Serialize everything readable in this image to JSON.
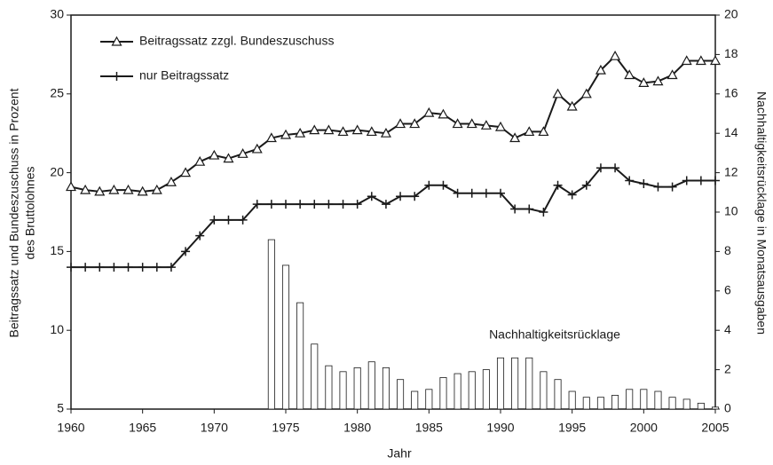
{
  "chart_data": {
    "type": "combo",
    "xlabel": "Jahr",
    "ylabel": [
      "Beitragssatz und Bundeszuschuss in Prozent",
      "des Bruttolohnes"
    ],
    "y2label": "Nachhaltigkeitsrücklage in Monatsausgaben",
    "annotation": "Nachhaltigkeitsrücklage",
    "xlim": [
      1960,
      2005
    ],
    "xticks": [
      1960,
      1965,
      1970,
      1975,
      1980,
      1985,
      1990,
      1995,
      2000,
      2005
    ],
    "ylim": [
      5,
      30
    ],
    "yticks": [
      5,
      10,
      15,
      20,
      25,
      30
    ],
    "y2lim": [
      0,
      20
    ],
    "y2ticks": [
      0,
      2,
      4,
      6,
      8,
      10,
      12,
      14,
      16,
      18,
      20
    ],
    "legend": "upper left",
    "series": [
      {
        "name": "Beitragssatz zzgl. Bundeszuschuss",
        "type": "line",
        "marker": "triangle",
        "color": "#1a1a1a",
        "x": [
          1960,
          1961,
          1962,
          1963,
          1964,
          1965,
          1966,
          1967,
          1968,
          1969,
          1970,
          1971,
          1972,
          1973,
          1974,
          1975,
          1976,
          1977,
          1978,
          1979,
          1980,
          1981,
          1982,
          1983,
          1984,
          1985,
          1986,
          1987,
          1988,
          1989,
          1990,
          1991,
          1992,
          1993,
          1994,
          1995,
          1996,
          1997,
          1998,
          1999,
          2000,
          2001,
          2002,
          2003,
          2004,
          2005
        ],
        "values": [
          19.1,
          18.9,
          18.8,
          18.9,
          18.9,
          18.8,
          18.9,
          19.4,
          20.0,
          20.7,
          21.1,
          20.9,
          21.2,
          21.5,
          22.2,
          22.4,
          22.5,
          22.7,
          22.7,
          22.6,
          22.7,
          22.6,
          22.5,
          23.1,
          23.1,
          23.8,
          23.7,
          23.1,
          23.1,
          23.0,
          22.9,
          22.2,
          22.6,
          22.6,
          25.0,
          24.2,
          25.0,
          26.5,
          27.4,
          26.2,
          25.7,
          25.8,
          26.2,
          27.1,
          27.1,
          27.1
        ]
      },
      {
        "name": "nur Beitragssatz",
        "type": "line",
        "marker": "plus",
        "color": "#1a1a1a",
        "x": [
          1960,
          1961,
          1962,
          1963,
          1964,
          1965,
          1966,
          1967,
          1968,
          1969,
          1970,
          1971,
          1972,
          1973,
          1974,
          1975,
          1976,
          1977,
          1978,
          1979,
          1980,
          1981,
          1982,
          1983,
          1984,
          1985,
          1986,
          1987,
          1988,
          1989,
          1990,
          1991,
          1992,
          1993,
          1994,
          1995,
          1996,
          1997,
          1998,
          1999,
          2000,
          2001,
          2002,
          2003,
          2004,
          2005
        ],
        "values": [
          14,
          14,
          14,
          14,
          14,
          14,
          14,
          14,
          15,
          16,
          17,
          17,
          17,
          18,
          18,
          18,
          18,
          18,
          18,
          18,
          18,
          18.5,
          18.0,
          18.5,
          18.5,
          19.2,
          19.2,
          18.7,
          18.7,
          18.7,
          18.7,
          17.7,
          17.7,
          17.5,
          19.2,
          18.6,
          19.2,
          20.3,
          20.3,
          19.5,
          19.3,
          19.1,
          19.1,
          19.5,
          19.5,
          19.5
        ]
      },
      {
        "type": "bar",
        "axis": "y2",
        "color": "#ffffff",
        "x": [
          1974,
          1975,
          1976,
          1977,
          1978,
          1979,
          1980,
          1981,
          1982,
          1983,
          1984,
          1985,
          1986,
          1987,
          1988,
          1989,
          1990,
          1991,
          1992,
          1993,
          1994,
          1995,
          1996,
          1997,
          1998,
          1999,
          2000,
          2001,
          2002,
          2003,
          2004,
          2005
        ],
        "values": [
          8.6,
          7.3,
          5.4,
          3.3,
          2.2,
          1.9,
          2.1,
          2.4,
          2.1,
          1.5,
          0.9,
          1.0,
          1.6,
          1.8,
          1.9,
          2.0,
          2.6,
          2.6,
          2.6,
          1.9,
          1.5,
          0.9,
          0.6,
          0.6,
          0.7,
          1.0,
          1.0,
          0.9,
          0.6,
          0.5,
          0.3,
          0.1
        ]
      }
    ]
  }
}
